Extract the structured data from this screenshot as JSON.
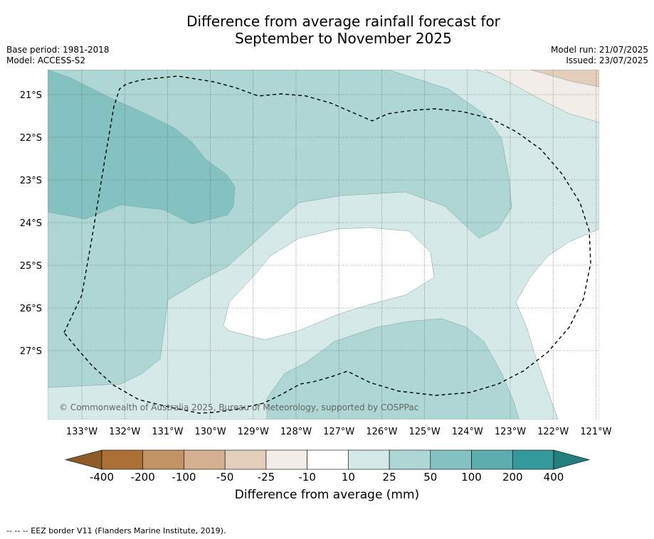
{
  "header": {
    "title_line1": "Difference from average rainfall forecast for",
    "title_line2": "September to November 2025",
    "base_period": "Base period: 1981-2018",
    "model": "Model: ACCESS-S2",
    "model_run": "Model run: 21/07/2025",
    "issued": "Issued: 23/07/2025"
  },
  "map": {
    "copyright": "© Commonwealth of Australia 2025, Bureau of Meteorology, supported by COSPPac",
    "lat_labels": [
      "21°S",
      "22°S",
      "23°S",
      "24°S",
      "25°S",
      "26°S",
      "27°S"
    ],
    "lon_labels": [
      "133°W",
      "132°W",
      "131°W",
      "130°W",
      "129°W",
      "128°W",
      "127°W",
      "126°W",
      "125°W",
      "124°W",
      "123°W",
      "122°W",
      "121°W"
    ],
    "colors": {
      "c10_25": "#d5eae8",
      "c25_50": "#add6d5",
      "c50_100": "#84c2c1",
      "cneg10_25": "#f2ede8",
      "cneg25_50": "#e3cdbb",
      "neutral": "#ffffff"
    }
  },
  "colorbar": {
    "colors": [
      "#aa7035",
      "#c29465",
      "#d4b08f",
      "#e3cdbb",
      "#f2ede8",
      "#ffffff",
      "#d5eae8",
      "#add6d5",
      "#84c2c1",
      "#5caeae",
      "#34999a"
    ],
    "end_left": "#8d5a28",
    "end_right": "#237f7f",
    "labels": [
      "-400",
      "-200",
      "-100",
      "-50",
      "-25",
      "-10",
      "10",
      "25",
      "50",
      "100",
      "200",
      "400"
    ],
    "title": "Difference from average (mm)"
  },
  "footer": {
    "legend": "--  --  -- EEZ border V11 (Flanders Marine Institute, 2019)."
  }
}
